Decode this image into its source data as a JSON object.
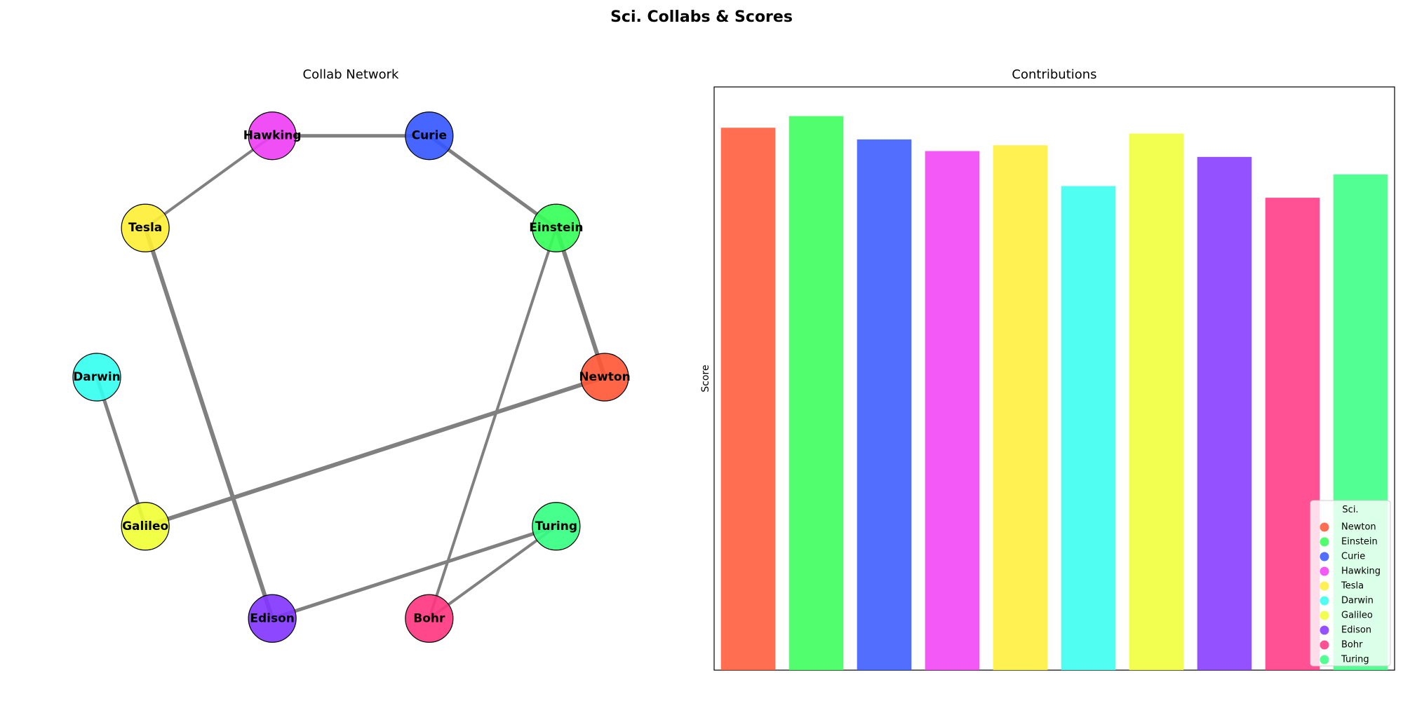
{
  "figure_title": "Sci. Collabs & Scores",
  "colors": {
    "Newton": "#ff5533",
    "Einstein": "#33ff55",
    "Curie": "#3355ff",
    "Hawking": "#f03cf5",
    "Tesla": "#ffee33",
    "Darwin": "#33fff0",
    "Galileo": "#f0ff33",
    "Edison": "#8033ff",
    "Bohr": "#ff3380",
    "Turing": "#33ff80",
    "edge": "#808080"
  },
  "chart_data": [
    {
      "type": "network",
      "title": "Collab Network",
      "nodes": [
        "Newton",
        "Einstein",
        "Curie",
        "Hawking",
        "Tesla",
        "Darwin",
        "Galileo",
        "Edison",
        "Bohr",
        "Turing"
      ],
      "layout": "circular",
      "edges": [
        {
          "source": "Hawking",
          "target": "Curie",
          "weight": 5
        },
        {
          "source": "Curie",
          "target": "Einstein",
          "weight": 5
        },
        {
          "source": "Tesla",
          "target": "Hawking",
          "weight": 4
        },
        {
          "source": "Einstein",
          "target": "Newton",
          "weight": 6
        },
        {
          "source": "Einstein",
          "target": "Bohr",
          "weight": 4
        },
        {
          "source": "Tesla",
          "target": "Edison",
          "weight": 6
        },
        {
          "source": "Darwin",
          "target": "Galileo",
          "weight": 5
        },
        {
          "source": "Galileo",
          "target": "Newton",
          "weight": 6
        },
        {
          "source": "Edison",
          "target": "Turing",
          "weight": 5
        },
        {
          "source": "Bohr",
          "target": "Turing",
          "weight": 4
        }
      ]
    },
    {
      "type": "bar",
      "title": "Contributions",
      "xlabel": "",
      "ylabel": "Score",
      "categories": [
        "Newton",
        "Einstein",
        "Curie",
        "Hawking",
        "Tesla",
        "Darwin",
        "Galileo",
        "Edison",
        "Bohr",
        "Turing"
      ],
      "values": [
        93,
        95,
        91,
        89,
        90,
        83,
        92,
        88,
        81,
        85
      ],
      "ylim": [
        0,
        100
      ],
      "legend": {
        "title": "Sci.",
        "placement": "lower-right"
      }
    }
  ]
}
